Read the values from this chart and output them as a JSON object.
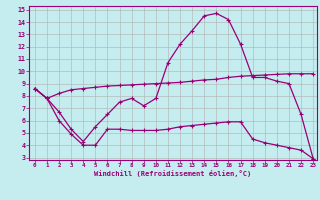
{
  "title": "",
  "xlabel": "Windchill (Refroidissement éolien,°C)",
  "ylabel": "",
  "xlim": [
    -0.5,
    23.3
  ],
  "ylim": [
    2.8,
    15.3
  ],
  "yticks": [
    3,
    4,
    5,
    6,
    7,
    8,
    9,
    10,
    11,
    12,
    13,
    14,
    15
  ],
  "xticks": [
    0,
    1,
    2,
    3,
    4,
    5,
    6,
    7,
    8,
    9,
    10,
    11,
    12,
    13,
    14,
    15,
    16,
    17,
    18,
    19,
    20,
    21,
    22,
    23
  ],
  "bg_color": "#c5ecee",
  "grid_color": "#b0b0b0",
  "line_color": "#990077",
  "line1_x": [
    0,
    1,
    2,
    3,
    4,
    5,
    6,
    7,
    8,
    9,
    10,
    11,
    12,
    13,
    14,
    15,
    16,
    17,
    18,
    19,
    20,
    21,
    22,
    23
  ],
  "line1_y": [
    8.6,
    7.8,
    8.2,
    8.5,
    8.6,
    8.7,
    8.8,
    8.85,
    8.9,
    8.95,
    9.0,
    9.05,
    9.1,
    9.2,
    9.3,
    9.35,
    9.5,
    9.6,
    9.65,
    9.7,
    9.75,
    9.8,
    9.8,
    9.8
  ],
  "line2_x": [
    0,
    1,
    2,
    3,
    4,
    5,
    6,
    7,
    8,
    9,
    10,
    11,
    12,
    13,
    14,
    15,
    16,
    17,
    18,
    19,
    20,
    21,
    22,
    23
  ],
  "line2_y": [
    8.6,
    7.8,
    6.7,
    5.3,
    4.3,
    5.5,
    6.5,
    7.5,
    7.8,
    7.2,
    7.8,
    10.7,
    12.2,
    13.3,
    14.5,
    14.7,
    14.2,
    12.2,
    9.5,
    9.5,
    9.2,
    9.0,
    6.5,
    2.9
  ],
  "line3_x": [
    0,
    1,
    2,
    3,
    4,
    5,
    6,
    7,
    8,
    9,
    10,
    11,
    12,
    13,
    14,
    15,
    16,
    17,
    18,
    19,
    20,
    21,
    22,
    23
  ],
  "line3_y": [
    8.6,
    7.8,
    6.0,
    4.9,
    4.0,
    4.0,
    5.3,
    5.3,
    5.2,
    5.2,
    5.2,
    5.3,
    5.5,
    5.6,
    5.7,
    5.8,
    5.9,
    5.9,
    4.5,
    4.2,
    4.0,
    3.8,
    3.6,
    2.9
  ]
}
